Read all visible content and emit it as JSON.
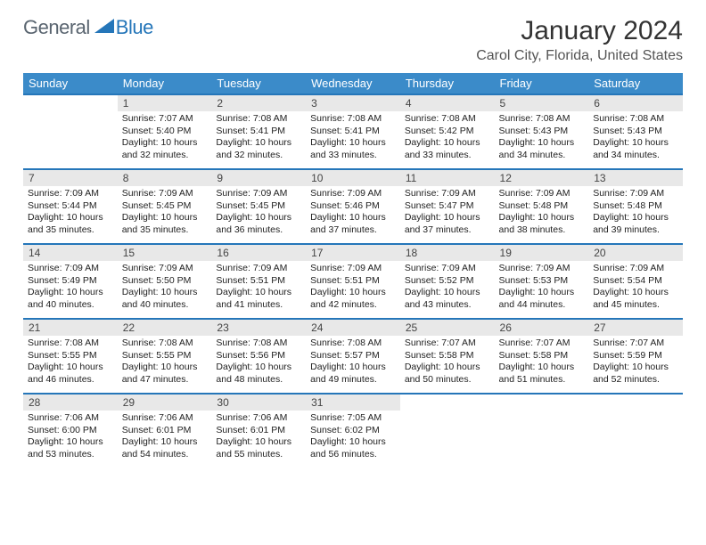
{
  "logo": {
    "general": "General",
    "blue": "Blue"
  },
  "title": "January 2024",
  "location": "Carol City, Florida, United States",
  "header_colors": {
    "bar": "#3b8bc9",
    "border": "#2576b9",
    "daynum_bg": "#e8e8e8"
  },
  "weekdays": [
    "Sunday",
    "Monday",
    "Tuesday",
    "Wednesday",
    "Thursday",
    "Friday",
    "Saturday"
  ],
  "weeks": [
    [
      null,
      {
        "n": "1",
        "sr": "7:07 AM",
        "ss": "5:40 PM",
        "dl": "10 hours and 32 minutes."
      },
      {
        "n": "2",
        "sr": "7:08 AM",
        "ss": "5:41 PM",
        "dl": "10 hours and 32 minutes."
      },
      {
        "n": "3",
        "sr": "7:08 AM",
        "ss": "5:41 PM",
        "dl": "10 hours and 33 minutes."
      },
      {
        "n": "4",
        "sr": "7:08 AM",
        "ss": "5:42 PM",
        "dl": "10 hours and 33 minutes."
      },
      {
        "n": "5",
        "sr": "7:08 AM",
        "ss": "5:43 PM",
        "dl": "10 hours and 34 minutes."
      },
      {
        "n": "6",
        "sr": "7:08 AM",
        "ss": "5:43 PM",
        "dl": "10 hours and 34 minutes."
      }
    ],
    [
      {
        "n": "7",
        "sr": "7:09 AM",
        "ss": "5:44 PM",
        "dl": "10 hours and 35 minutes."
      },
      {
        "n": "8",
        "sr": "7:09 AM",
        "ss": "5:45 PM",
        "dl": "10 hours and 35 minutes."
      },
      {
        "n": "9",
        "sr": "7:09 AM",
        "ss": "5:45 PM",
        "dl": "10 hours and 36 minutes."
      },
      {
        "n": "10",
        "sr": "7:09 AM",
        "ss": "5:46 PM",
        "dl": "10 hours and 37 minutes."
      },
      {
        "n": "11",
        "sr": "7:09 AM",
        "ss": "5:47 PM",
        "dl": "10 hours and 37 minutes."
      },
      {
        "n": "12",
        "sr": "7:09 AM",
        "ss": "5:48 PM",
        "dl": "10 hours and 38 minutes."
      },
      {
        "n": "13",
        "sr": "7:09 AM",
        "ss": "5:48 PM",
        "dl": "10 hours and 39 minutes."
      }
    ],
    [
      {
        "n": "14",
        "sr": "7:09 AM",
        "ss": "5:49 PM",
        "dl": "10 hours and 40 minutes."
      },
      {
        "n": "15",
        "sr": "7:09 AM",
        "ss": "5:50 PM",
        "dl": "10 hours and 40 minutes."
      },
      {
        "n": "16",
        "sr": "7:09 AM",
        "ss": "5:51 PM",
        "dl": "10 hours and 41 minutes."
      },
      {
        "n": "17",
        "sr": "7:09 AM",
        "ss": "5:51 PM",
        "dl": "10 hours and 42 minutes."
      },
      {
        "n": "18",
        "sr": "7:09 AM",
        "ss": "5:52 PM",
        "dl": "10 hours and 43 minutes."
      },
      {
        "n": "19",
        "sr": "7:09 AM",
        "ss": "5:53 PM",
        "dl": "10 hours and 44 minutes."
      },
      {
        "n": "20",
        "sr": "7:09 AM",
        "ss": "5:54 PM",
        "dl": "10 hours and 45 minutes."
      }
    ],
    [
      {
        "n": "21",
        "sr": "7:08 AM",
        "ss": "5:55 PM",
        "dl": "10 hours and 46 minutes."
      },
      {
        "n": "22",
        "sr": "7:08 AM",
        "ss": "5:55 PM",
        "dl": "10 hours and 47 minutes."
      },
      {
        "n": "23",
        "sr": "7:08 AM",
        "ss": "5:56 PM",
        "dl": "10 hours and 48 minutes."
      },
      {
        "n": "24",
        "sr": "7:08 AM",
        "ss": "5:57 PM",
        "dl": "10 hours and 49 minutes."
      },
      {
        "n": "25",
        "sr": "7:07 AM",
        "ss": "5:58 PM",
        "dl": "10 hours and 50 minutes."
      },
      {
        "n": "26",
        "sr": "7:07 AM",
        "ss": "5:58 PM",
        "dl": "10 hours and 51 minutes."
      },
      {
        "n": "27",
        "sr": "7:07 AM",
        "ss": "5:59 PM",
        "dl": "10 hours and 52 minutes."
      }
    ],
    [
      {
        "n": "28",
        "sr": "7:06 AM",
        "ss": "6:00 PM",
        "dl": "10 hours and 53 minutes."
      },
      {
        "n": "29",
        "sr": "7:06 AM",
        "ss": "6:01 PM",
        "dl": "10 hours and 54 minutes."
      },
      {
        "n": "30",
        "sr": "7:06 AM",
        "ss": "6:01 PM",
        "dl": "10 hours and 55 minutes."
      },
      {
        "n": "31",
        "sr": "7:05 AM",
        "ss": "6:02 PM",
        "dl": "10 hours and 56 minutes."
      },
      null,
      null,
      null
    ]
  ],
  "labels": {
    "sunrise": "Sunrise:",
    "sunset": "Sunset:",
    "daylight": "Daylight:"
  }
}
